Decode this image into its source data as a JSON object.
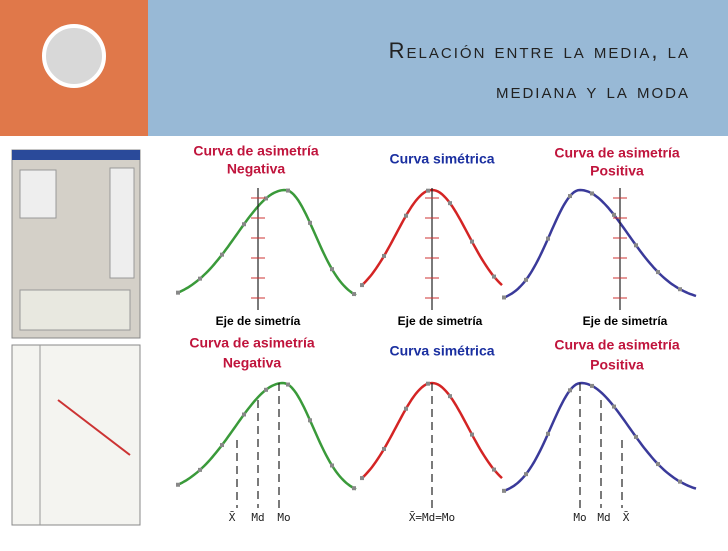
{
  "header": {
    "title_line1": "Relación entre la media, la",
    "title_line2": "mediana y la moda"
  },
  "figure": {
    "top": {
      "negative": [
        "Curva de asimetría",
        "Negativa"
      ],
      "symmetric": "Curva simétrica",
      "positive": [
        "Curva de asimetría",
        "Positiva"
      ],
      "axis_labels": [
        "Eje de simetría",
        "Eje de simetría",
        "Eje de simetría"
      ]
    },
    "bottom": {
      "negative": [
        "Curva de asimetría",
        "Negativa"
      ],
      "symmetric": "Curva simétrica",
      "positive": [
        "Curva de asimetría",
        "Positiva"
      ],
      "negative_marks": [
        "X̄",
        "Md",
        "Mo"
      ],
      "symmetric_mark": "X̄=Md=Mo",
      "positive_marks": [
        "Mo",
        "Md",
        "X̄"
      ]
    }
  }
}
